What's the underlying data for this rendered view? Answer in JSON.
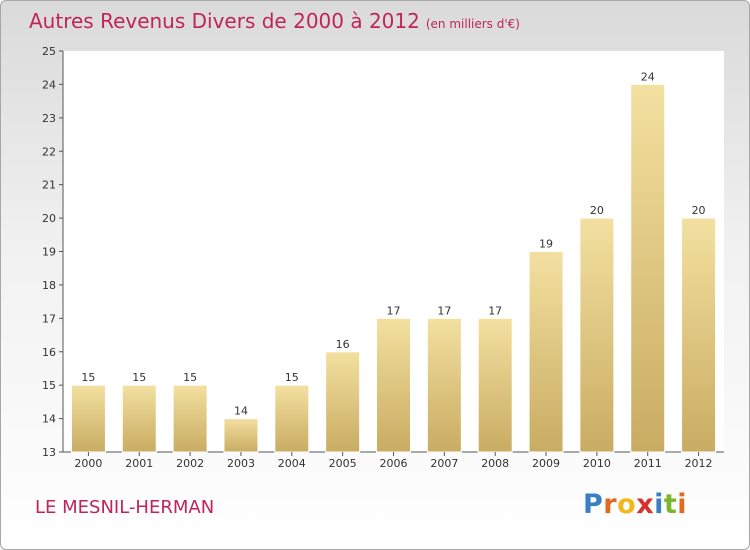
{
  "title": "Autres Revenus Divers de 2000 à 2012",
  "unit_note": "(en milliers d'€)",
  "commune": "LE MESNIL-HERMAN",
  "logo": {
    "text": "Proxiti",
    "letters": [
      "P",
      "r",
      "o",
      "x",
      "i",
      "t",
      "i"
    ],
    "colors": [
      "#3a7fc4",
      "#e06a1f",
      "#f0b81c",
      "#d8312b",
      "#3a7fc4",
      "#7ab52a",
      "#e06a1f"
    ]
  },
  "colors": {
    "title": "#c0245a",
    "bar_top": "#f3e0a0",
    "bar_bottom": "#c9ac62",
    "axis": "#555555"
  },
  "chart_data": {
    "type": "bar",
    "categories": [
      "2000",
      "2001",
      "2002",
      "2003",
      "2004",
      "2005",
      "2006",
      "2007",
      "2008",
      "2009",
      "2010",
      "2011",
      "2012"
    ],
    "values": [
      15,
      15,
      15,
      14,
      15,
      16,
      17,
      17,
      17,
      19,
      20,
      24,
      20
    ],
    "ylim": [
      13,
      25
    ],
    "yticks": [
      13,
      14,
      15,
      16,
      17,
      18,
      19,
      20,
      21,
      22,
      23,
      24,
      25
    ],
    "grid": false,
    "xlabel": "",
    "ylabel": ""
  }
}
